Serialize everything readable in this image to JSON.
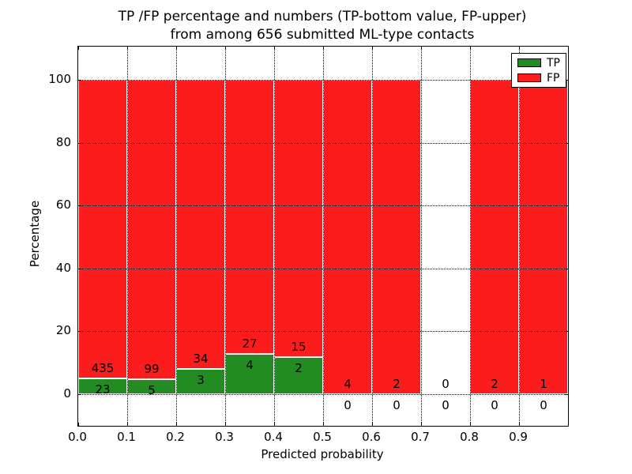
{
  "figure": {
    "title_line1": "TP /FP percentage and numbers (TP-bottom value, FP-upper)",
    "title_line2": "from among 656 submitted ML-type contacts"
  },
  "colors": {
    "tp_green": "#228b22",
    "fp_red": "#fb1d1d",
    "grid": "#000000",
    "background": "#ffffff"
  },
  "chart_data": {
    "type": "bar",
    "stacked": true,
    "normalized_to_percent": true,
    "title": "TP /FP percentage and numbers (TP-bottom value, FP-upper) from among 656 submitted ML-type contacts",
    "xlabel": "Predicted probability",
    "ylabel": "Percentage",
    "xlim": [
      0.0,
      1.0
    ],
    "ylim": [
      -10,
      110.5
    ],
    "grid": true,
    "x_tick_labels": [
      "0.0",
      "0.1",
      "0.2",
      "0.3",
      "0.4",
      "0.5",
      "0.6",
      "0.7",
      "0.8",
      "0.9"
    ],
    "x_tick_values": [
      0.0,
      0.1,
      0.2,
      0.3,
      0.4,
      0.5,
      0.6,
      0.7,
      0.8,
      0.9
    ],
    "y_tick_labels": [
      "0",
      "20",
      "40",
      "60",
      "80",
      "100"
    ],
    "y_tick_values": [
      0,
      20,
      40,
      60,
      80,
      100
    ],
    "total_contacts": 656,
    "categories": [
      "0.0-0.1",
      "0.1-0.2",
      "0.2-0.3",
      "0.3-0.4",
      "0.4-0.5",
      "0.5-0.6",
      "0.6-0.7",
      "0.7-0.8",
      "0.8-0.9",
      "0.9-1.0"
    ],
    "series": [
      {
        "name": "TP",
        "color": "#228b22",
        "counts": [
          23,
          5,
          3,
          4,
          2,
          0,
          0,
          0,
          0,
          0
        ]
      },
      {
        "name": "FP",
        "color": "#fb1d1d",
        "counts": [
          435,
          99,
          34,
          27,
          15,
          4,
          2,
          0,
          2,
          1
        ]
      }
    ],
    "legend": {
      "position": "upper right",
      "entries": [
        {
          "label": "TP",
          "color": "#228b22"
        },
        {
          "label": "FP",
          "color": "#fb1d1d"
        }
      ]
    }
  }
}
